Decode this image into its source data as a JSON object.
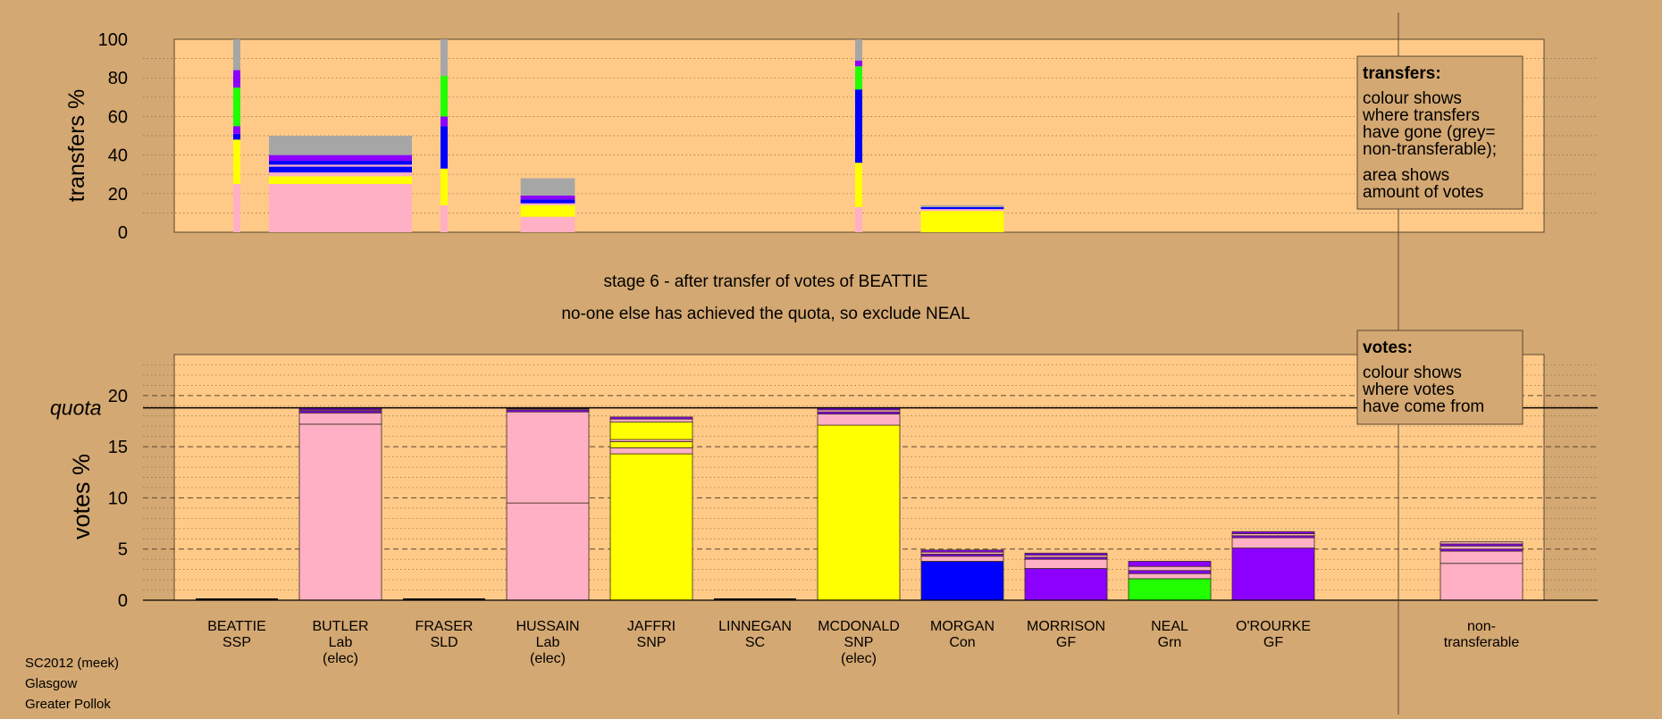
{
  "colors": {
    "background": "#d4a872",
    "panel": "#ffca88",
    "pink": "#ffb0c4",
    "yellow": "#ffff00",
    "green": "#22ff00",
    "blue": "#0000ff",
    "purple": "#8b00ff",
    "grey": "#a6a6a6"
  },
  "footer": [
    "SC2012 (meek)",
    "Glasgow",
    "Greater Pollok"
  ],
  "heading": {
    "stage": "stage 6 - after transfer of votes of BEATTIE",
    "note": "no-one else has achieved the quota, so exclude NEAL"
  },
  "transfers_legend": {
    "title": "transfers:",
    "lines": [
      "colour shows",
      "where transfers",
      "have gone (grey=",
      "non-transferable);"
    ],
    "lines2": [
      "area shows",
      "amount of votes"
    ]
  },
  "votes_legend": {
    "title": "votes:",
    "lines": [
      "colour shows",
      "where votes",
      "have come from"
    ]
  },
  "quota_label": "quota",
  "candidates": [
    {
      "name": "BEATTIE",
      "party": "SSP",
      "status": ""
    },
    {
      "name": "BUTLER",
      "party": "Lab",
      "status": "(elec)"
    },
    {
      "name": "FRASER",
      "party": "SLD",
      "status": ""
    },
    {
      "name": "HUSSAIN",
      "party": "Lab",
      "status": "(elec)"
    },
    {
      "name": "JAFFRI",
      "party": "SNP",
      "status": ""
    },
    {
      "name": "LINNEGAN",
      "party": "SC",
      "status": ""
    },
    {
      "name": "MCDONALD",
      "party": "SNP",
      "status": "(elec)"
    },
    {
      "name": "MORGAN",
      "party": "Con",
      "status": ""
    },
    {
      "name": "MORRISON",
      "party": "GF",
      "status": ""
    },
    {
      "name": "NEAL",
      "party": "Grn",
      "status": ""
    },
    {
      "name": "O'ROURKE",
      "party": "GF",
      "status": ""
    },
    {
      "name": "non-",
      "party": "transferable",
      "status": ""
    }
  ],
  "chart_data": [
    {
      "type": "bar",
      "ylabel": "transfers %",
      "ylim": [
        0,
        100
      ],
      "yticks": [
        0,
        20,
        40,
        60,
        80,
        100
      ],
      "bars": [
        {
          "candidate": "BEATTIE",
          "width_share": 0.05,
          "segments": [
            [
              "pink",
              25
            ],
            [
              "yellow",
              23
            ],
            [
              "blue",
              3
            ],
            [
              "purple",
              4
            ],
            [
              "green",
              20
            ],
            [
              "purple",
              9
            ],
            [
              "grey",
              16
            ]
          ]
        },
        {
          "candidate": "BUTLER",
          "width_share": 1.0,
          "segments": [
            [
              "pink",
              25
            ],
            [
              "yellow",
              4
            ],
            [
              "pink",
              2
            ],
            [
              "blue",
              3
            ],
            [
              "pink",
              1
            ],
            [
              "blue",
              2
            ],
            [
              "purple",
              3
            ],
            [
              "grey",
              10
            ]
          ]
        },
        {
          "candidate": "FRASER",
          "width_share": 0.05,
          "segments": [
            [
              "pink",
              14
            ],
            [
              "yellow",
              19
            ],
            [
              "blue",
              22
            ],
            [
              "purple",
              5
            ],
            [
              "green",
              21
            ],
            [
              "grey",
              19
            ]
          ]
        },
        {
          "candidate": "HUSSAIN",
          "width_share": 0.38,
          "segments": [
            [
              "pink",
              8
            ],
            [
              "yellow",
              6
            ],
            [
              "pink",
              1
            ],
            [
              "blue",
              2
            ],
            [
              "purple",
              2
            ],
            [
              "grey",
              9
            ]
          ]
        },
        {
          "candidate": "MCDONALD",
          "width_share": 0.05,
          "segments": [
            [
              "pink",
              13
            ],
            [
              "yellow",
              23
            ],
            [
              "blue",
              38
            ],
            [
              "green",
              12
            ],
            [
              "purple",
              3
            ],
            [
              "grey",
              11
            ]
          ]
        },
        {
          "candidate": "MORGAN",
          "width_share": 0.58,
          "segments": [
            [
              "yellow",
              11
            ],
            [
              "pink",
              1
            ],
            [
              "blue",
              1
            ],
            [
              "grey",
              1
            ]
          ]
        }
      ]
    },
    {
      "type": "bar",
      "ylabel": "votes %",
      "ylim": [
        0,
        24
      ],
      "yticks": [
        0,
        5,
        10,
        15,
        20
      ],
      "quota": 18.8,
      "bars": [
        {
          "candidate": "BEATTIE",
          "segments": [],
          "baseline_only": true
        },
        {
          "candidate": "BUTLER",
          "segments": [
            [
              "pink",
              17.2
            ],
            [
              "pink",
              1.1
            ],
            [
              "purple",
              0.2
            ],
            [
              "pink",
              0.1
            ],
            [
              "purple",
              0.2
            ]
          ]
        },
        {
          "candidate": "FRASER",
          "segments": [],
          "baseline_only": true
        },
        {
          "candidate": "HUSSAIN",
          "segments": [
            [
              "pink",
              9.5
            ],
            [
              "pink",
              8.9
            ],
            [
              "purple",
              0.2
            ],
            [
              "pink",
              0.1
            ],
            [
              "purple",
              0.1
            ]
          ]
        },
        {
          "candidate": "JAFFRI",
          "segments": [
            [
              "yellow",
              14.3
            ],
            [
              "pink",
              0.6
            ],
            [
              "yellow",
              0.6
            ],
            [
              "pink",
              0.2
            ],
            [
              "yellow",
              1.7
            ],
            [
              "pink",
              0.3
            ],
            [
              "purple",
              0.2
            ]
          ]
        },
        {
          "candidate": "LINNEGAN",
          "segments": [],
          "baseline_only": true
        },
        {
          "candidate": "MCDONALD",
          "segments": [
            [
              "yellow",
              17.1
            ],
            [
              "pink",
              1.1
            ],
            [
              "purple",
              0.2
            ],
            [
              "pink",
              0.2
            ],
            [
              "purple",
              0.2
            ]
          ]
        },
        {
          "candidate": "MORGAN",
          "segments": [
            [
              "blue",
              3.8
            ],
            [
              "pink",
              0.5
            ],
            [
              "purple",
              0.2
            ],
            [
              "pink",
              0.2
            ],
            [
              "purple",
              0.2
            ]
          ]
        },
        {
          "candidate": "MORRISON",
          "segments": [
            [
              "purple",
              3.1
            ],
            [
              "pink",
              0.9
            ],
            [
              "purple",
              0.2
            ],
            [
              "pink",
              0.2
            ],
            [
              "purple",
              0.2
            ]
          ]
        },
        {
          "candidate": "NEAL",
          "segments": [
            [
              "green",
              2.1
            ],
            [
              "pink",
              0.5
            ],
            [
              "purple",
              0.3
            ],
            [
              "pink",
              0.4
            ],
            [
              "purple",
              0.5
            ]
          ]
        },
        {
          "candidate": "O'ROURKE",
          "segments": [
            [
              "purple",
              5.1
            ],
            [
              "pink",
              1.0
            ],
            [
              "purple",
              0.2
            ],
            [
              "pink",
              0.2
            ],
            [
              "purple",
              0.2
            ]
          ]
        },
        {
          "candidate": "non-transferable",
          "segments": [
            [
              "pink",
              3.6
            ],
            [
              "pink",
              1.2
            ],
            [
              "purple",
              0.2
            ],
            [
              "pink",
              0.3
            ],
            [
              "purple",
              0.2
            ],
            [
              "pink",
              0.2
            ]
          ]
        }
      ]
    }
  ]
}
